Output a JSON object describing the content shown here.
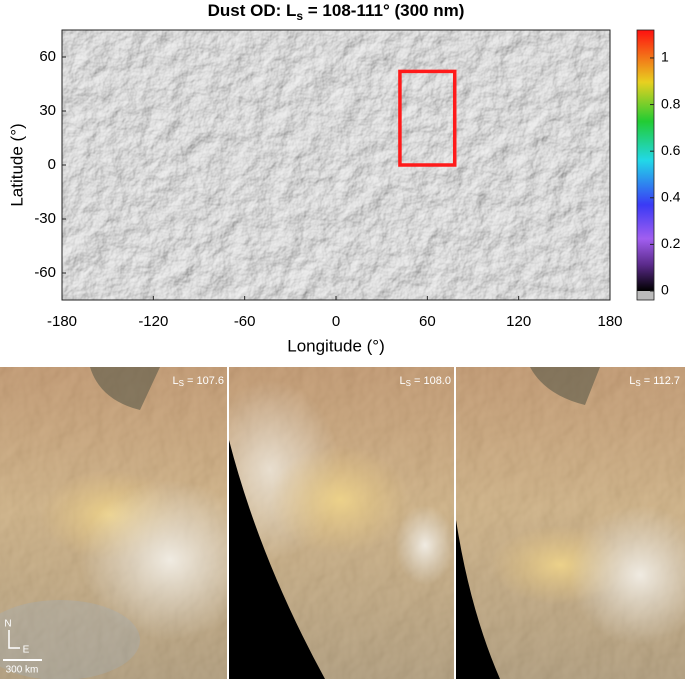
{
  "chart_data": {
    "type": "map",
    "title": {
      "main": "Dust OD: L",
      "sub": "s",
      "rest": " = 108-111° (300 nm)"
    },
    "x_label": "Longitude (°)",
    "y_label": "Latitude (°)",
    "xlim": [
      -180,
      180
    ],
    "xticks": [
      -180,
      -120,
      -60,
      0,
      60,
      120,
      180
    ],
    "ylim": [
      -75,
      75
    ],
    "yticks": [
      60,
      30,
      0,
      -30,
      -60
    ],
    "highlight_box": {
      "lon": [
        42,
        78
      ],
      "lat": [
        0,
        52
      ],
      "color": "#ff1a1a"
    },
    "colorbar": {
      "lim": [
        0,
        1.12
      ],
      "ticks": [
        0,
        0.2,
        0.4,
        0.6,
        0.8,
        1
      ]
    }
  },
  "panels": [
    {
      "label": "L",
      "sub": "S",
      "value": " = 107.6"
    },
    {
      "label": "L",
      "sub": "S",
      "value": " = 108.0"
    },
    {
      "label": "L",
      "sub": "S",
      "value": " = 112.7"
    }
  ],
  "annotations": {
    "north": "N",
    "east": "E",
    "scale": "300 km"
  }
}
